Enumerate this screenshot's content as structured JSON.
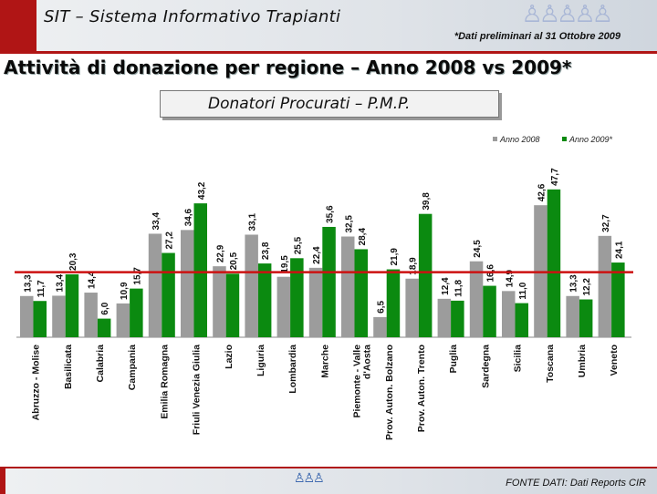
{
  "header": {
    "system_title": "SIT – Sistema Informativo Trapianti",
    "preliminary_note": "*Dati preliminari al 31 Ottobre 2009",
    "logo_icon": "people-group-icon"
  },
  "page_title": "Attività di donazione per regione – Anno 2008 vs 2009*",
  "subtitle": "Donatori Procurati – P.M.P.",
  "footer": {
    "source": "FONTE DATI: Dati Reports CIR",
    "logo_icon": "cnt-logo-icon"
  },
  "colors": {
    "series_2008": "#9c9c9c",
    "series_2009": "#0b8a10",
    "reference_line": "#cc1111",
    "accent": "#b01515"
  },
  "chart_data": {
    "type": "bar",
    "title": "Donatori Procurati – P.M.P.",
    "legend_position": "top-right",
    "categories": [
      "Abruzzo - Molise",
      "Basilicata",
      "Calabria",
      "Campania",
      "Emilia Romagna",
      "Friuli Venezia Giulia",
      "Lazio",
      "Liguria",
      "Lombardia",
      "Marche",
      "Piemonte - Valle d'Aosta",
      "Prov. Auton. Bolzano",
      "Prov. Auton. Trento",
      "Puglia",
      "Sardegna",
      "Sicilia",
      "Toscana",
      "Umbria",
      "Veneto"
    ],
    "series": [
      {
        "name": "Anno 2008",
        "values": [
          13.3,
          13.4,
          14.4,
          10.9,
          33.4,
          34.6,
          22.9,
          33.1,
          19.5,
          22.4,
          32.5,
          6.5,
          18.9,
          12.4,
          24.5,
          14.9,
          42.6,
          13.3,
          32.7
        ]
      },
      {
        "name": "Anno 2009*",
        "values": [
          11.7,
          20.3,
          6.0,
          15.7,
          27.2,
          43.2,
          20.5,
          23.8,
          25.5,
          35.6,
          28.4,
          21.9,
          39.8,
          11.8,
          16.6,
          11.0,
          47.7,
          12.2,
          24.1
        ]
      }
    ],
    "value_labels_2008": [
      "13,3",
      "13,4",
      "14,4",
      "10,9",
      "33,4",
      "34,6",
      "22,9",
      "33,1",
      "19,5",
      "22,4",
      "32,5",
      "6,5",
      "18,9",
      "12,4",
      "24,5",
      "14,9",
      "42,6",
      "13,3",
      "32,7"
    ],
    "value_labels_2009": [
      "11,7",
      "20,3",
      "6,0",
      "15,7",
      "27,2",
      "43,2",
      "20,5",
      "23,8",
      "25,5",
      "35,6",
      "28,4",
      "21,9",
      "39,8",
      "11,8",
      "16,6",
      "11,0",
      "47,7",
      "12,2",
      "24,1"
    ],
    "reference_line_value": 21,
    "ylim": [
      0,
      50
    ],
    "grid": false
  }
}
